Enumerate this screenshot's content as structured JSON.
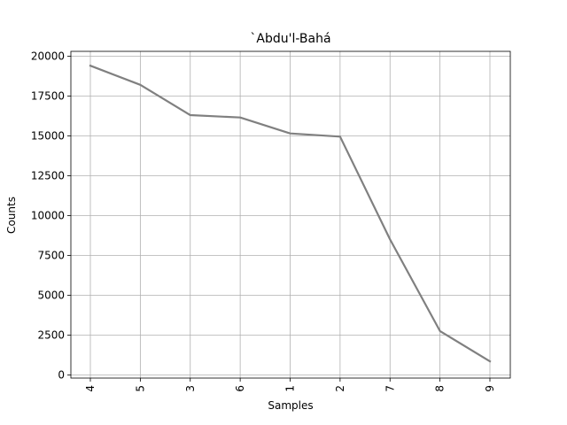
{
  "chart_data": {
    "type": "line",
    "title": "`Abdu'l-Bahá",
    "xlabel": "Samples",
    "ylabel": "Counts",
    "categories": [
      "4",
      "5",
      "3",
      "6",
      "1",
      "2",
      "7",
      "8",
      "9"
    ],
    "series": [
      {
        "values": [
          19400,
          18200,
          16300,
          16150,
          15150,
          14950,
          8500,
          2750,
          850
        ],
        "color": "#808080"
      }
    ],
    "ylim": [
      -200,
      20300
    ],
    "yticks": [
      0,
      2500,
      5000,
      7500,
      10000,
      12500,
      15000,
      17500,
      20000
    ],
    "ytick_labels": [
      "0",
      "2500",
      "5000",
      "7500",
      "10000",
      "12500",
      "15000",
      "17500",
      "20000"
    ],
    "grid": true,
    "xtick_rotation": 90
  }
}
